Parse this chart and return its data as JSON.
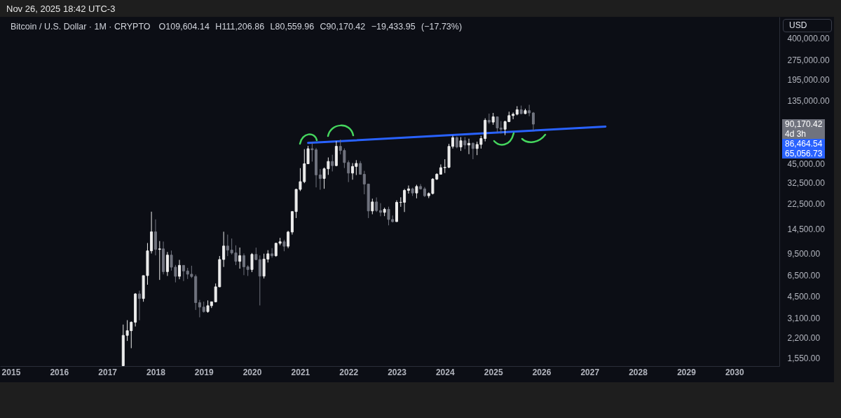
{
  "chart_data": {
    "type": "candlestick",
    "title": "Bitcoin / U.S. Dollar · 1M · CRYPTO",
    "subtitle": "O109,604.14 H111,206.86 L80,559.96 C90,170.42 −19,433.95 (−17.73%)",
    "ylabel": "USD",
    "annotations": [
      "Nov 26, 2025 18:42 UTC-3",
      "90,170.42",
      "4d 3h",
      "86,464.54",
      "65,056.73"
    ],
    "x": [
      "2017-05",
      "2017-06",
      "2017-07",
      "2017-08",
      "2017-09",
      "2017-10",
      "2017-11",
      "2017-12",
      "2018-01",
      "2018-02",
      "2018-03",
      "2018-04",
      "2018-05",
      "2018-06",
      "2018-07",
      "2018-08",
      "2018-09",
      "2018-10",
      "2018-11",
      "2018-12",
      "2019-01",
      "2019-02",
      "2019-03",
      "2019-04",
      "2019-05",
      "2019-06",
      "2019-07",
      "2019-08",
      "2019-09",
      "2019-10",
      "2019-11",
      "2019-12",
      "2020-01",
      "2020-02",
      "2020-03",
      "2020-04",
      "2020-05",
      "2020-06",
      "2020-07",
      "2020-08",
      "2020-09",
      "2020-10",
      "2020-11",
      "2020-12",
      "2021-01",
      "2021-02",
      "2021-03",
      "2021-04",
      "2021-05",
      "2021-06",
      "2021-07",
      "2021-08",
      "2021-09",
      "2021-10",
      "2021-11",
      "2021-12",
      "2022-01",
      "2022-02",
      "2022-03",
      "2022-04",
      "2022-05",
      "2022-06",
      "2022-07",
      "2022-08",
      "2022-09",
      "2022-10",
      "2022-11",
      "2022-12",
      "2023-01",
      "2023-02",
      "2023-03",
      "2023-04",
      "2023-05",
      "2023-06",
      "2023-07",
      "2023-08",
      "2023-09",
      "2023-10",
      "2023-11",
      "2023-12",
      "2024-01",
      "2024-02",
      "2024-03",
      "2024-04",
      "2024-05",
      "2024-06",
      "2024-07",
      "2024-08",
      "2024-09",
      "2024-10",
      "2024-11",
      "2024-12",
      "2025-01",
      "2025-02",
      "2025-03",
      "2025-04",
      "2025-05",
      "2025-06",
      "2025-07",
      "2025-08",
      "2025-09",
      "2025-10",
      "2025-11"
    ],
    "ohlc": [
      [
        1348,
        2760,
        1348,
        2286
      ],
      [
        2286,
        2980,
        2076,
        2480
      ],
      [
        2480,
        2916,
        1830,
        2875
      ],
      [
        2875,
        4770,
        2669,
        4703
      ],
      [
        4703,
        4980,
        2972,
        4339
      ],
      [
        4339,
        6470,
        4106,
        6468
      ],
      [
        6468,
        11400,
        5519,
        9947
      ],
      [
        9947,
        19666,
        9500,
        13850
      ],
      [
        13850,
        17200,
        9200,
        10200
      ],
      [
        10200,
        11800,
        6000,
        10300
      ],
      [
        10300,
        11700,
        6600,
        6930
      ],
      [
        6930,
        9750,
        6430,
        9240
      ],
      [
        9240,
        10000,
        7050,
        7490
      ],
      [
        7490,
        7780,
        5750,
        6390
      ],
      [
        6390,
        8500,
        6070,
        7730
      ],
      [
        7730,
        7760,
        5880,
        7010
      ],
      [
        7010,
        7400,
        6100,
        6630
      ],
      [
        6630,
        7680,
        6200,
        6370
      ],
      [
        6370,
        6590,
        3560,
        4040
      ],
      [
        4040,
        4240,
        3130,
        3740
      ],
      [
        3740,
        4110,
        3400,
        3460
      ],
      [
        3460,
        4200,
        3390,
        3830
      ],
      [
        3830,
        4120,
        3680,
        4100
      ],
      [
        4100,
        5640,
        4060,
        5320
      ],
      [
        5320,
        9100,
        5300,
        8560
      ],
      [
        8560,
        13880,
        7520,
        10820
      ],
      [
        10820,
        13200,
        9080,
        10080
      ],
      [
        10080,
        12330,
        9330,
        9590
      ],
      [
        9590,
        10950,
        7760,
        8290
      ],
      [
        8290,
        10540,
        7300,
        9150
      ],
      [
        9150,
        9500,
        6520,
        7540
      ],
      [
        7540,
        7750,
        6430,
        7190
      ],
      [
        7190,
        9580,
        6870,
        9350
      ],
      [
        9350,
        10520,
        8470,
        8540
      ],
      [
        8540,
        9190,
        3850,
        6410
      ],
      [
        6410,
        9470,
        6150,
        8620
      ],
      [
        8620,
        10070,
        8120,
        9450
      ],
      [
        9450,
        10430,
        8830,
        9140
      ],
      [
        9140,
        11460,
        8970,
        11350
      ],
      [
        11350,
        12470,
        10980,
        11650
      ],
      [
        11650,
        12070,
        9880,
        10780
      ],
      [
        10780,
        14100,
        10410,
        13800
      ],
      [
        13800,
        19900,
        13200,
        19700
      ],
      [
        19700,
        29300,
        17600,
        28990
      ],
      [
        28990,
        41950,
        28150,
        33140
      ],
      [
        33140,
        58350,
        32300,
        45240
      ],
      [
        45240,
        61800,
        45000,
        58800
      ],
      [
        58800,
        64900,
        47000,
        57700
      ],
      [
        57700,
        59600,
        30000,
        37300
      ],
      [
        37300,
        41300,
        28800,
        35040
      ],
      [
        35040,
        42400,
        29300,
        41460
      ],
      [
        41460,
        50500,
        37300,
        47130
      ],
      [
        47130,
        52920,
        39600,
        43820
      ],
      [
        43820,
        67000,
        43300,
        61300
      ],
      [
        61300,
        69000,
        53250,
        57000
      ],
      [
        57000,
        59100,
        42000,
        46200
      ],
      [
        46200,
        47990,
        32900,
        38480
      ],
      [
        38480,
        45800,
        34300,
        43190
      ],
      [
        43190,
        48200,
        37200,
        45540
      ],
      [
        45540,
        47450,
        37500,
        37660
      ],
      [
        37660,
        40000,
        26600,
        31800
      ],
      [
        31800,
        31980,
        17600,
        19920
      ],
      [
        19920,
        24650,
        18800,
        23300
      ],
      [
        23300,
        25200,
        19550,
        20050
      ],
      [
        20050,
        22800,
        18150,
        19430
      ],
      [
        19430,
        21100,
        18200,
        20490
      ],
      [
        20490,
        21450,
        15500,
        17170
      ],
      [
        17170,
        18400,
        16300,
        16540
      ],
      [
        16540,
        23950,
        16500,
        23130
      ],
      [
        23130,
        25250,
        21400,
        23150
      ],
      [
        23150,
        29200,
        19550,
        28480
      ],
      [
        28480,
        31000,
        26950,
        29250
      ],
      [
        29250,
        29850,
        25850,
        27220
      ],
      [
        27220,
        31400,
        24800,
        30480
      ],
      [
        30480,
        31800,
        28900,
        29230
      ],
      [
        29230,
        30200,
        25400,
        25940
      ],
      [
        25940,
        27500,
        24900,
        26970
      ],
      [
        26970,
        35200,
        26550,
        34660
      ],
      [
        34660,
        38400,
        34100,
        37720
      ],
      [
        37720,
        44750,
        37600,
        42280
      ],
      [
        42280,
        48970,
        38500,
        42580
      ],
      [
        42580,
        64000,
        41900,
        61200
      ],
      [
        61200,
        73800,
        59000,
        71300
      ],
      [
        71300,
        72800,
        59200,
        60600
      ],
      [
        60600,
        71950,
        56600,
        67500
      ],
      [
        67500,
        72000,
        58400,
        62700
      ],
      [
        62700,
        70000,
        53500,
        64600
      ],
      [
        64600,
        65600,
        49000,
        58970
      ],
      [
        58970,
        66500,
        52600,
        63330
      ],
      [
        63330,
        73600,
        58900,
        70200
      ],
      [
        70200,
        99800,
        66800,
        96400
      ],
      [
        96400,
        108300,
        90500,
        93400
      ],
      [
        93400,
        109600,
        89200,
        102400
      ],
      [
        102400,
        102500,
        78200,
        84350
      ],
      [
        84350,
        95000,
        76600,
        82550
      ],
      [
        82550,
        95800,
        74500,
        94200
      ],
      [
        94200,
        112000,
        93300,
        104600
      ],
      [
        104600,
        110500,
        98200,
        107100
      ],
      [
        107100,
        123200,
        105100,
        115760
      ],
      [
        115760,
        124500,
        107300,
        108250
      ],
      [
        108250,
        117900,
        107300,
        114050
      ],
      [
        114050,
        126200,
        103500,
        109600
      ],
      [
        109604.14,
        111206.86,
        80559.96,
        90170.42
      ]
    ],
    "colors": [
      "#ececec",
      "#ececec",
      "#ececec",
      "#ececec",
      "#70737e",
      "#ececec",
      "#ececec",
      "#ececec",
      "#70737e",
      "#ececec",
      "#70737e",
      "#ececec",
      "#70737e",
      "#70737e",
      "#ececec",
      "#70737e",
      "#70737e",
      "#70737e",
      "#70737e",
      "#70737e",
      "#70737e",
      "#ececec",
      "#ececec",
      "#ececec",
      "#ececec",
      "#ececec",
      "#70737e",
      "#70737e",
      "#70737e",
      "#ececec",
      "#70737e",
      "#70737e",
      "#ececec",
      "#70737e",
      "#70737e",
      "#ececec",
      "#ececec",
      "#70737e",
      "#ececec",
      "#ececec",
      "#70737e",
      "#ececec",
      "#ececec",
      "#ececec",
      "#ececec",
      "#ececec",
      "#ececec",
      "#70737e",
      "#70737e",
      "#70737e",
      "#ececec",
      "#ececec",
      "#70737e",
      "#ececec",
      "#70737e",
      "#70737e",
      "#70737e",
      "#ececec",
      "#ececec",
      "#70737e",
      "#70737e",
      "#70737e",
      "#ececec",
      "#70737e",
      "#70737e",
      "#ececec",
      "#70737e",
      "#70737e",
      "#ececec",
      "#ececec",
      "#ececec",
      "#ececec",
      "#70737e",
      "#ececec",
      "#70737e",
      "#70737e",
      "#ececec",
      "#ececec",
      "#ececec",
      "#ececec",
      "#ececec",
      "#ececec",
      "#ececec",
      "#70737e",
      "#ececec",
      "#70737e",
      "#ececec",
      "#70737e",
      "#ececec",
      "#ececec",
      "#ececec",
      "#70737e",
      "#ececec",
      "#70737e",
      "#70737e",
      "#ececec",
      "#ececec",
      "#ececec",
      "#ececec",
      "#70737e",
      "#ececec",
      "#70737e",
      "#70737e"
    ],
    "series": [
      {
        "type": "line",
        "x": [
          "2021-03",
          "2027-05"
        ],
        "values": [
          65056.73,
          86464.54
        ],
        "color": "#2962ff"
      }
    ],
    "xlim": [
      "2014-10-11",
      "2030-12-08"
    ],
    "xticks": [
      "2015",
      "2016",
      "2017",
      "2018",
      "2019",
      "2020",
      "2021",
      "2022",
      "2023",
      "2024",
      "2025",
      "2026",
      "2027",
      "2028",
      "2029",
      "2030"
    ],
    "ylim": [
      1340,
      583000
    ],
    "yticks": [
      {
        "value": 1550,
        "label": "1,550.00"
      },
      {
        "value": 2200,
        "label": "2,200.00"
      },
      {
        "value": 3100,
        "label": "3,100.00"
      },
      {
        "value": 4500,
        "label": "4,500.00"
      },
      {
        "value": 6500,
        "label": "6,500.00"
      },
      {
        "value": 9500,
        "label": "9,500.00"
      },
      {
        "value": 14500,
        "label": "14,500.00"
      },
      {
        "value": 22500,
        "label": "22,500.00"
      },
      {
        "value": 32500,
        "label": "32,500.00"
      },
      {
        "value": 45000,
        "label": "45,000.00"
      },
      {
        "value": 135000,
        "label": "135,000.00"
      },
      {
        "value": 195000,
        "label": "195,000.00"
      },
      {
        "value": 275000,
        "label": "275,000.00"
      },
      {
        "value": 400000,
        "label": "400,000.00"
      }
    ],
    "log": true
  }
}
